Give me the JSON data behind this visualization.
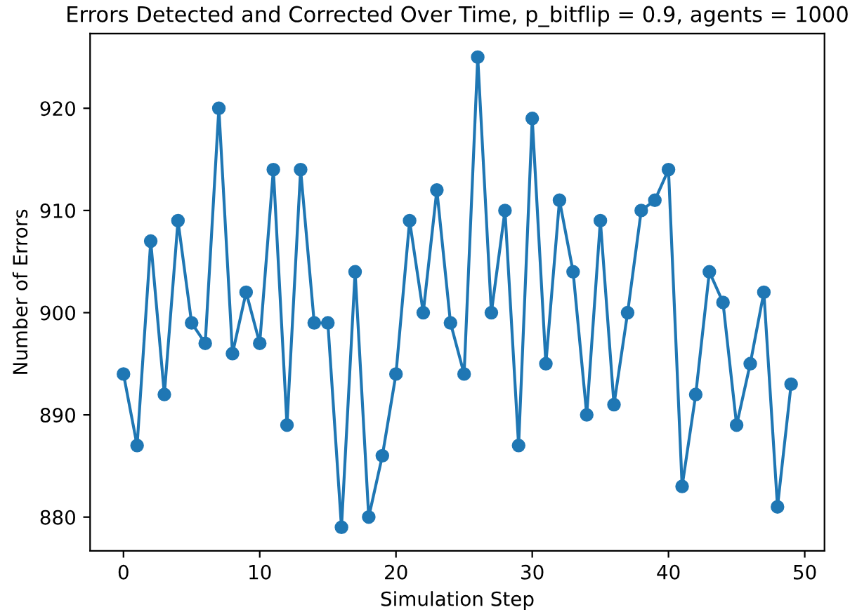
{
  "chart_data": {
    "type": "line",
    "title": "Errors Detected and Corrected Over Time, p_bitflip = 0.9, agents = 1000",
    "xlabel": "Simulation Step",
    "ylabel": "Number of Errors",
    "x": [
      0,
      1,
      2,
      3,
      4,
      5,
      6,
      7,
      8,
      9,
      10,
      11,
      12,
      13,
      14,
      15,
      16,
      17,
      18,
      19,
      20,
      21,
      22,
      23,
      24,
      25,
      26,
      27,
      28,
      29,
      30,
      31,
      32,
      33,
      34,
      35,
      36,
      37,
      38,
      39,
      40,
      41,
      42,
      43,
      44,
      45,
      46,
      47,
      48,
      49
    ],
    "series": [
      {
        "color": "#1f77b4",
        "values": [
          894,
          887,
          907,
          892,
          909,
          899,
          897,
          920,
          896,
          902,
          897,
          914,
          889,
          914,
          899,
          899,
          879,
          904,
          880,
          886,
          894,
          909,
          900,
          912,
          899,
          894,
          925,
          900,
          910,
          887,
          919,
          895,
          911,
          904,
          890,
          909,
          891,
          900,
          910,
          911,
          914,
          883,
          892,
          904,
          901,
          889,
          895,
          902,
          881,
          893
        ]
      }
    ],
    "marker": "circle",
    "line_style": "solid",
    "grid": false,
    "legend": false,
    "xlim": [
      -2.45,
      51.45
    ],
    "xticks": [
      0,
      10,
      20,
      30,
      40,
      50
    ],
    "ylim": [
      876.7,
      927.3
    ],
    "yticks": [
      880,
      890,
      900,
      910,
      920
    ]
  }
}
